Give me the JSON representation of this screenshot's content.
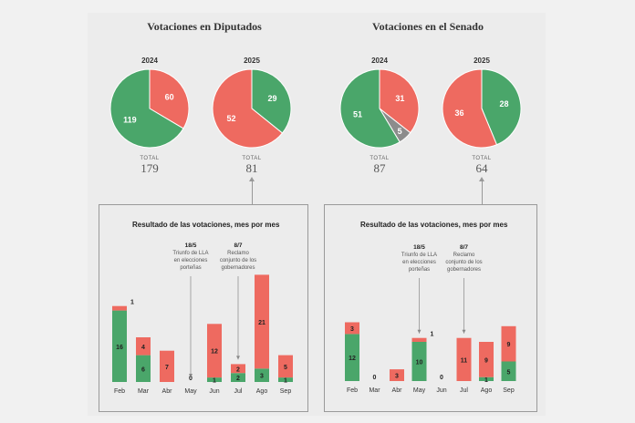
{
  "colors": {
    "green": "#4aa66a",
    "red": "#ee6a60",
    "grey": "#8c8c8c",
    "text_dark": "#222222"
  },
  "diputados": {
    "title": "Votaciones en Diputados",
    "pies": [
      {
        "year": "2024",
        "total_label": "TOTAL",
        "total": "179",
        "slices": [
          {
            "label": "60",
            "value": 60,
            "color": "red"
          },
          {
            "label": "119",
            "value": 119,
            "color": "green"
          }
        ]
      },
      {
        "year": "2025",
        "total_label": "TOTAL",
        "total": "81",
        "slices": [
          {
            "label": "29",
            "value": 29,
            "color": "green"
          },
          {
            "label": "52",
            "value": 52,
            "color": "red"
          }
        ]
      }
    ],
    "monthly_title": "Resultado de las votaciones, mes por mes"
  },
  "senado": {
    "title": "Votaciones en el Senado",
    "pies": [
      {
        "year": "2024",
        "total_label": "TOTAL",
        "total": "87",
        "slices": [
          {
            "label": "31",
            "value": 31,
            "color": "red"
          },
          {
            "label": "5",
            "value": 5,
            "color": "grey"
          },
          {
            "label": "51",
            "value": 51,
            "color": "green"
          }
        ]
      },
      {
        "year": "2025",
        "total_label": "TOTAL",
        "total": "64",
        "slices": [
          {
            "label": "28",
            "value": 28,
            "color": "green"
          },
          {
            "label": "36",
            "value": 36,
            "color": "red"
          }
        ]
      }
    ],
    "monthly_title": "Resultado de las votaciones, mes por mes"
  },
  "chart_data": [
    {
      "type": "pie",
      "title": "Votaciones en Diputados 2024",
      "categories": [
        "Rojo",
        "Verde"
      ],
      "values": [
        60,
        119
      ],
      "total": 179
    },
    {
      "type": "pie",
      "title": "Votaciones en Diputados 2025",
      "categories": [
        "Verde",
        "Rojo"
      ],
      "values": [
        29,
        52
      ],
      "total": 81
    },
    {
      "type": "pie",
      "title": "Votaciones en el Senado 2024",
      "categories": [
        "Rojo",
        "Gris",
        "Verde"
      ],
      "values": [
        31,
        5,
        51
      ],
      "total": 87
    },
    {
      "type": "pie",
      "title": "Votaciones en el Senado 2025",
      "categories": [
        "Verde",
        "Rojo"
      ],
      "values": [
        28,
        36
      ],
      "total": 64
    },
    {
      "type": "bar",
      "stacked": true,
      "title": "Resultado de las votaciones, mes por mes (Diputados)",
      "categories": [
        "Feb",
        "Mar",
        "Abr",
        "May",
        "Jun",
        "Jul",
        "Ago",
        "Sep"
      ],
      "series": [
        {
          "name": "green",
          "values": [
            16,
            6,
            0,
            0,
            1,
            2,
            3,
            1
          ]
        },
        {
          "name": "red",
          "values": [
            1,
            4,
            7,
            0,
            12,
            2,
            21,
            5
          ]
        }
      ],
      "zero_labels": [
        "",
        "",
        "",
        "0",
        "",
        "",
        "",
        ""
      ],
      "annotations": [
        {
          "after_category": "May",
          "lines": [
            "18/5",
            "Triunfo de LLA",
            "en elecciones",
            "porteñas"
          ]
        },
        {
          "after_category": "Jul",
          "lines": [
            "8/7",
            "Reclamo",
            "conjunto de los",
            "gobernadores"
          ]
        }
      ]
    },
    {
      "type": "bar",
      "stacked": true,
      "title": "Resultado de las votaciones, mes por mes (Senado)",
      "categories": [
        "Feb",
        "Mar",
        "Abr",
        "May",
        "Jun",
        "Jul",
        "Ago",
        "Sep"
      ],
      "series": [
        {
          "name": "green",
          "values": [
            12,
            0,
            0,
            10,
            0,
            0,
            1,
            5
          ]
        },
        {
          "name": "red",
          "values": [
            3,
            0,
            3,
            1,
            0,
            11,
            9,
            9
          ]
        }
      ],
      "zero_labels": [
        "",
        "0",
        "",
        "",
        "0",
        "",
        "",
        ""
      ],
      "annotations": [
        {
          "after_category": "May",
          "lines": [
            "18/5",
            "Triunfo de LLA",
            "en elecciones",
            "porteñas"
          ]
        },
        {
          "after_category": "Jul",
          "lines": [
            "8/7",
            "Reclamo",
            "conjunto de los",
            "gobernadores"
          ]
        }
      ]
    }
  ]
}
